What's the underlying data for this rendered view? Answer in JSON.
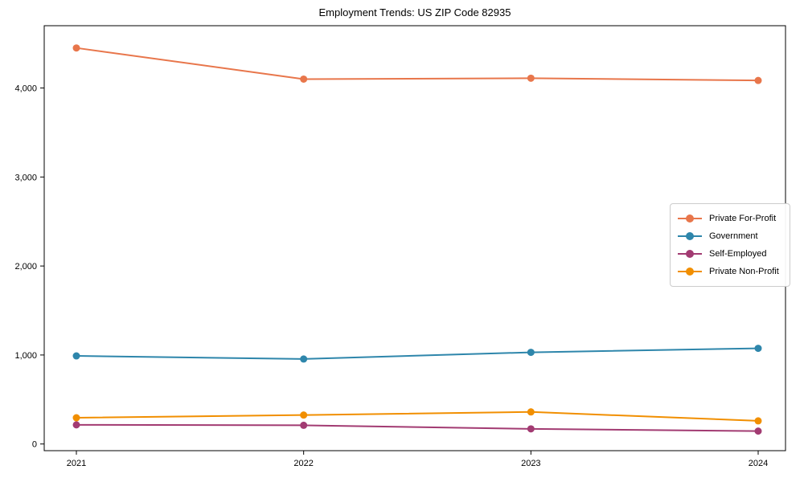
{
  "chart_data": {
    "type": "line",
    "title": "Employment Trends: US ZIP Code 82935",
    "xlabel": "",
    "ylabel": "",
    "categories": [
      "2021",
      "2022",
      "2023",
      "2024"
    ],
    "series": [
      {
        "name": "Private For-Profit",
        "color": "#E8764B",
        "values": [
          4450,
          4100,
          4110,
          4085
        ]
      },
      {
        "name": "Government",
        "color": "#2E86AB",
        "values": [
          990,
          955,
          1030,
          1075
        ]
      },
      {
        "name": "Self-Employed",
        "color": "#A23B72",
        "values": [
          215,
          210,
          170,
          145
        ]
      },
      {
        "name": "Private Non-Profit",
        "color": "#F18F01",
        "values": [
          295,
          325,
          360,
          260
        ]
      }
    ],
    "ylim": [
      -75,
      4700
    ],
    "yticks": [
      {
        "value": 0,
        "label": "0"
      },
      {
        "value": 1000,
        "label": "1,000"
      },
      {
        "value": 2000,
        "label": "2,000"
      },
      {
        "value": 3000,
        "label": "3,000"
      },
      {
        "value": 4000,
        "label": "4,000"
      }
    ],
    "grid": false,
    "legend_position": "center-right",
    "axis_color": "#000000",
    "background_color": "#ffffff"
  }
}
